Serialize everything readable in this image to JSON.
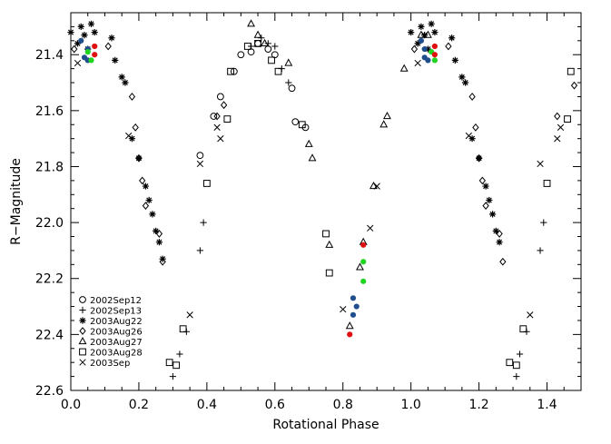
{
  "chart_data": {
    "type": "scatter",
    "title": "",
    "xlabel": "Rotational Phase",
    "ylabel": "R−Magnitude",
    "xlim": [
      0.0,
      1.5
    ],
    "ylim": [
      22.6,
      21.25
    ],
    "y_inverted": true,
    "x_ticks": [
      "0.0",
      "0.2",
      "0.4",
      "0.6",
      "0.8",
      "1.0",
      "1.2",
      "1.4"
    ],
    "y_ticks": [
      "21.4",
      "21.6",
      "21.8",
      "22.0",
      "22.2",
      "22.4",
      "22.6"
    ],
    "grid": false,
    "legend_position": "bottom-left",
    "series": [
      {
        "name": "2002Sep12",
        "marker": "circle",
        "points": [
          [
            0.38,
            21.76
          ],
          [
            0.42,
            21.62
          ],
          [
            0.44,
            21.55
          ],
          [
            0.48,
            21.46
          ],
          [
            0.5,
            21.4
          ],
          [
            0.53,
            21.39
          ],
          [
            0.55,
            21.36
          ],
          [
            0.58,
            21.38
          ],
          [
            0.6,
            21.4
          ],
          [
            0.65,
            21.52
          ],
          [
            0.66,
            21.64
          ],
          [
            0.69,
            21.66
          ]
        ]
      },
      {
        "name": "2002Sep13",
        "marker": "plus",
        "points": [
          [
            0.3,
            22.55
          ],
          [
            0.32,
            22.47
          ],
          [
            0.34,
            22.39
          ],
          [
            0.38,
            22.1
          ],
          [
            0.39,
            22.0
          ],
          [
            0.53,
            21.37
          ],
          [
            0.56,
            21.34
          ],
          [
            0.58,
            21.36
          ],
          [
            0.6,
            21.37
          ],
          [
            0.62,
            21.45
          ],
          [
            0.64,
            21.5
          ],
          [
            1.31,
            22.55
          ],
          [
            1.32,
            22.47
          ],
          [
            1.34,
            22.39
          ],
          [
            1.38,
            22.1
          ],
          [
            1.39,
            22.0
          ]
        ]
      },
      {
        "name": "2003Aug22",
        "marker": "asterisk",
        "points": [
          [
            0.0,
            21.32
          ],
          [
            0.02,
            21.36
          ],
          [
            0.03,
            21.3
          ],
          [
            0.04,
            21.33
          ],
          [
            0.05,
            21.38
          ],
          [
            0.06,
            21.29
          ],
          [
            0.07,
            21.32
          ],
          [
            0.12,
            21.34
          ],
          [
            0.13,
            21.42
          ],
          [
            0.15,
            21.48
          ],
          [
            0.16,
            21.5
          ],
          [
            0.18,
            21.7
          ],
          [
            0.2,
            21.77
          ],
          [
            0.22,
            21.87
          ],
          [
            0.23,
            21.92
          ],
          [
            0.24,
            21.97
          ],
          [
            0.25,
            22.03
          ],
          [
            0.26,
            22.07
          ],
          [
            0.27,
            22.13
          ],
          [
            1.0,
            21.32
          ],
          [
            1.02,
            21.36
          ],
          [
            1.03,
            21.3
          ],
          [
            1.04,
            21.33
          ],
          [
            1.05,
            21.38
          ],
          [
            1.06,
            21.29
          ],
          [
            1.07,
            21.32
          ],
          [
            1.12,
            21.34
          ],
          [
            1.13,
            21.42
          ],
          [
            1.15,
            21.48
          ],
          [
            1.16,
            21.5
          ],
          [
            1.18,
            21.7
          ],
          [
            1.2,
            21.77
          ],
          [
            1.22,
            21.87
          ],
          [
            1.23,
            21.92
          ],
          [
            1.24,
            21.97
          ],
          [
            1.25,
            22.03
          ],
          [
            1.26,
            22.07
          ]
        ]
      },
      {
        "name": "2003Aug26",
        "marker": "diamond",
        "points": [
          [
            0.01,
            21.38
          ],
          [
            0.11,
            21.37
          ],
          [
            0.18,
            21.55
          ],
          [
            0.19,
            21.66
          ],
          [
            0.2,
            21.77
          ],
          [
            0.21,
            21.85
          ],
          [
            0.22,
            21.94
          ],
          [
            0.26,
            22.04
          ],
          [
            0.27,
            22.14
          ],
          [
            0.43,
            21.62
          ],
          [
            0.45,
            21.58
          ],
          [
            1.01,
            21.38
          ],
          [
            1.11,
            21.37
          ],
          [
            1.18,
            21.55
          ],
          [
            1.19,
            21.66
          ],
          [
            1.2,
            21.77
          ],
          [
            1.21,
            21.85
          ],
          [
            1.22,
            21.94
          ],
          [
            1.26,
            22.04
          ],
          [
            1.27,
            22.14
          ],
          [
            1.43,
            21.62
          ],
          [
            1.48,
            21.51
          ]
        ]
      },
      {
        "name": "2003Aug27",
        "marker": "triangle",
        "points": [
          [
            0.53,
            21.29
          ],
          [
            0.55,
            21.33
          ],
          [
            0.57,
            21.36
          ],
          [
            0.64,
            21.43
          ],
          [
            0.7,
            21.72
          ],
          [
            0.71,
            21.77
          ],
          [
            0.76,
            22.08
          ],
          [
            0.82,
            22.37
          ],
          [
            0.85,
            22.16
          ],
          [
            0.86,
            22.07
          ],
          [
            0.89,
            21.87
          ],
          [
            0.93,
            21.62
          ],
          [
            0.92,
            21.65
          ],
          [
            0.98,
            21.45
          ],
          [
            1.03,
            21.33
          ],
          [
            1.05,
            21.33
          ]
        ]
      },
      {
        "name": "2003Aug28",
        "marker": "square",
        "points": [
          [
            0.29,
            22.5
          ],
          [
            0.31,
            22.51
          ],
          [
            0.33,
            22.38
          ],
          [
            0.4,
            21.86
          ],
          [
            0.46,
            21.63
          ],
          [
            0.47,
            21.46
          ],
          [
            0.52,
            21.37
          ],
          [
            0.55,
            21.36
          ],
          [
            0.59,
            21.42
          ],
          [
            0.61,
            21.46
          ],
          [
            0.68,
            21.65
          ],
          [
            0.75,
            22.04
          ],
          [
            0.76,
            22.18
          ],
          [
            1.29,
            22.5
          ],
          [
            1.31,
            22.51
          ],
          [
            1.33,
            22.38
          ],
          [
            1.4,
            21.86
          ],
          [
            1.46,
            21.63
          ],
          [
            1.47,
            21.46
          ]
        ]
      },
      {
        "name": "2003Sep",
        "marker": "cross",
        "points": [
          [
            0.02,
            21.43
          ],
          [
            0.17,
            21.69
          ],
          [
            0.35,
            22.33
          ],
          [
            0.8,
            22.31
          ],
          [
            0.88,
            22.02
          ],
          [
            0.9,
            21.87
          ],
          [
            0.44,
            21.7
          ],
          [
            0.43,
            21.66
          ],
          [
            0.38,
            21.79
          ],
          [
            1.02,
            21.43
          ],
          [
            1.17,
            21.69
          ],
          [
            1.35,
            22.33
          ],
          [
            1.43,
            21.7
          ],
          [
            1.44,
            21.66
          ],
          [
            1.38,
            21.79
          ]
        ]
      },
      {
        "name": "",
        "marker": "filled-circle",
        "color": "#1f4e8c",
        "points": [
          [
            0.03,
            21.35
          ],
          [
            0.05,
            21.38
          ],
          [
            0.04,
            21.41
          ],
          [
            0.05,
            21.42
          ],
          [
            0.83,
            22.27
          ],
          [
            0.84,
            22.3
          ],
          [
            0.83,
            22.33
          ],
          [
            1.03,
            21.35
          ],
          [
            1.04,
            21.38
          ],
          [
            1.04,
            21.41
          ],
          [
            1.05,
            21.42
          ]
        ]
      },
      {
        "name": "",
        "marker": "filled-circle",
        "color": "#22d422",
        "points": [
          [
            0.05,
            21.39
          ],
          [
            0.06,
            21.42
          ],
          [
            0.86,
            22.14
          ],
          [
            0.86,
            22.21
          ],
          [
            1.06,
            21.39
          ],
          [
            1.07,
            21.42
          ]
        ]
      },
      {
        "name": "",
        "marker": "filled-circle",
        "color": "#e01010",
        "points": [
          [
            0.07,
            21.37
          ],
          [
            0.07,
            21.4
          ],
          [
            0.86,
            22.08
          ],
          [
            0.82,
            22.4
          ],
          [
            1.07,
            21.37
          ],
          [
            1.07,
            21.4
          ]
        ]
      }
    ]
  }
}
